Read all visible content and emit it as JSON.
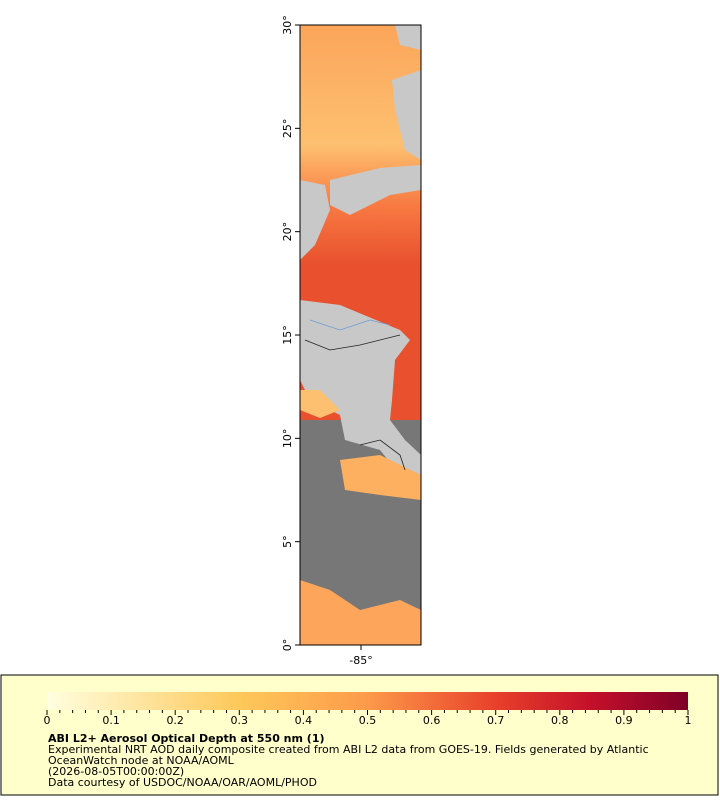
{
  "map": {
    "xlim": [
      -87.95,
      -82.1
    ],
    "ylim": [
      0,
      30
    ],
    "yticks": [
      {
        "value": 0,
        "label": "0°"
      },
      {
        "value": 5,
        "label": "5°"
      },
      {
        "value": 10,
        "label": "10°"
      },
      {
        "value": 15,
        "label": "15°"
      },
      {
        "value": 20,
        "label": "20°"
      },
      {
        "value": 25,
        "label": "25°"
      },
      {
        "value": 30,
        "label": "30°"
      }
    ],
    "xticks": [
      {
        "value": -85,
        "label": "-85°"
      }
    ]
  },
  "legend": {
    "colorbar": {
      "lim": [
        0,
        1
      ],
      "ticks": [
        0,
        0.1,
        0.2,
        0.3,
        0.4,
        0.5,
        0.6,
        0.7,
        0.8,
        0.9,
        1
      ]
    },
    "title": "ABI L2+ Aerosol Optical Depth at 550 nm (1)",
    "lines": [
      "Experimental NRT AOD daily composite created from ABI L2 data from GOES-19. Fields generated by Atlantic",
      "OceanWatch node at NOAA/AOML",
      "(2026-08-05T00:00:00Z)",
      "Data courtesy of USDOC/NOAA/OAR/AOML/PHOD"
    ]
  }
}
